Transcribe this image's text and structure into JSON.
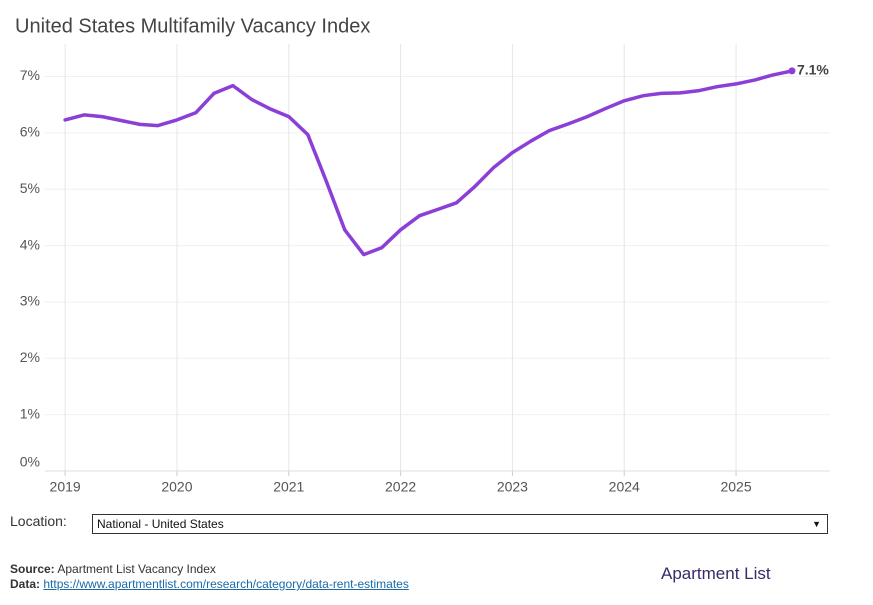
{
  "chart_data": {
    "type": "line",
    "title": "United States Multifamily Vacancy Index",
    "x": [
      2019.0,
      2019.17,
      2019.33,
      2019.5,
      2019.67,
      2019.83,
      2020.0,
      2020.17,
      2020.33,
      2020.5,
      2020.67,
      2020.83,
      2021.0,
      2021.17,
      2021.33,
      2021.5,
      2021.67,
      2021.83,
      2022.0,
      2022.17,
      2022.33,
      2022.5,
      2022.67,
      2022.83,
      2023.0,
      2023.17,
      2023.33,
      2023.5,
      2023.67,
      2023.83,
      2024.0,
      2024.17,
      2024.33,
      2024.5,
      2024.67,
      2024.83,
      2025.0,
      2025.17,
      2025.33,
      2025.5
    ],
    "series": [
      {
        "name": "National - United States",
        "color": "#8b3fd6",
        "values": [
          6.23,
          6.32,
          6.29,
          6.22,
          6.15,
          6.13,
          6.23,
          6.36,
          6.7,
          6.84,
          6.59,
          6.43,
          6.29,
          5.97,
          5.17,
          4.28,
          3.84,
          3.96,
          4.28,
          4.53,
          4.64,
          4.76,
          5.06,
          5.38,
          5.65,
          5.86,
          6.04,
          6.16,
          6.29,
          6.43,
          6.57,
          6.66,
          6.7,
          6.71,
          6.75,
          6.82,
          6.87,
          6.94,
          7.03,
          7.1
        ],
        "value_labels": [
          null,
          null,
          null,
          null,
          null,
          null,
          null,
          null,
          null,
          null,
          null,
          null,
          null,
          null,
          null,
          null,
          null,
          null,
          null,
          null,
          null,
          null,
          null,
          null,
          null,
          null,
          null,
          null,
          null,
          null,
          null,
          null,
          null,
          null,
          null,
          null,
          null,
          null,
          null,
          "7.1%"
        ]
      }
    ],
    "xlim": [
      2018.82,
      2025.84
    ],
    "xticks": [
      2019,
      2020,
      2021,
      2022,
      2023,
      2024,
      2025
    ],
    "ylim": [
      0,
      7.4
    ],
    "yticks": [
      {
        "value": 0,
        "label": "0%"
      },
      {
        "value": 1,
        "label": "1%"
      },
      {
        "value": 2,
        "label": "2%"
      },
      {
        "value": 3,
        "label": "3%"
      },
      {
        "value": 4,
        "label": "4%"
      },
      {
        "value": 5,
        "label": "5%"
      },
      {
        "value": 6,
        "label": "6%"
      },
      {
        "value": 7,
        "label": "7%"
      }
    ],
    "grid": true
  },
  "controls": {
    "location_label": "Location:",
    "location_value": "National - United States"
  },
  "footer": {
    "source_label": "Source:",
    "source": "Apartment List Vacancy Index",
    "data_label": "Data:",
    "data_link": "https://www.apartmentlist.com/research/category/data-rent-estimates"
  },
  "logo": "Apartment List"
}
